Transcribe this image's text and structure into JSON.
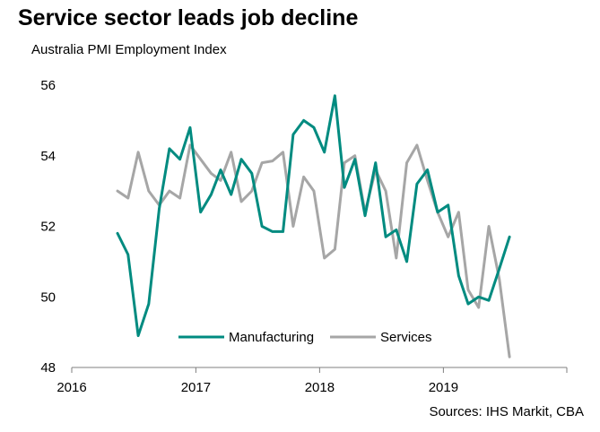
{
  "chart_data": {
    "type": "line",
    "title": "Service sector leads job decline",
    "subtitle": "Australia PMI Employment Index",
    "source": "Sources:  IHS Markit,  CBA",
    "xlabel": "",
    "ylabel": "",
    "xlim": [
      "2016-01-01",
      "2019-12-31"
    ],
    "ylim": [
      48,
      56
    ],
    "x_ticks": [
      "2016",
      "2017",
      "2018",
      "2019"
    ],
    "y_ticks": [
      "48",
      "50",
      "52",
      "54",
      "56"
    ],
    "grid": false,
    "legend_position": "bottom-center",
    "series": [
      {
        "name": "Manufacturing",
        "color": "#008b80",
        "x": [
          "2016-05",
          "2016-06",
          "2016-07",
          "2016-08",
          "2016-09",
          "2016-10",
          "2016-11",
          "2016-12",
          "2017-01",
          "2017-02",
          "2017-03",
          "2017-04",
          "2017-05",
          "2017-06",
          "2017-07",
          "2017-08",
          "2017-09",
          "2017-10",
          "2017-11",
          "2017-12",
          "2018-01",
          "2018-02",
          "2018-03",
          "2018-04",
          "2018-05",
          "2018-06",
          "2018-07",
          "2018-08",
          "2018-09",
          "2018-10",
          "2018-11",
          "2018-12",
          "2019-01",
          "2019-02",
          "2019-03",
          "2019-04",
          "2019-05",
          "2019-06",
          "2019-07"
        ],
        "values": [
          51.8,
          51.2,
          48.9,
          49.8,
          52.5,
          54.2,
          53.9,
          54.8,
          52.4,
          52.9,
          53.6,
          52.9,
          53.9,
          53.5,
          52.0,
          51.85,
          51.85,
          54.6,
          55.0,
          54.8,
          54.1,
          55.7,
          53.1,
          53.9,
          52.3,
          53.8,
          51.7,
          51.9,
          51.0,
          53.2,
          53.6,
          52.4,
          52.6,
          50.6,
          49.8,
          50.0,
          49.9,
          50.8,
          51.7
        ]
      },
      {
        "name": "Services",
        "color": "#a6a6a6",
        "x": [
          "2016-05",
          "2016-06",
          "2016-07",
          "2016-08",
          "2016-09",
          "2016-10",
          "2016-11",
          "2016-12",
          "2017-01",
          "2017-02",
          "2017-03",
          "2017-04",
          "2017-05",
          "2017-06",
          "2017-07",
          "2017-08",
          "2017-09",
          "2017-10",
          "2017-11",
          "2017-12",
          "2018-01",
          "2018-02",
          "2018-03",
          "2018-04",
          "2018-05",
          "2018-06",
          "2018-07",
          "2018-08",
          "2018-09",
          "2018-10",
          "2018-11",
          "2018-12",
          "2019-01",
          "2019-02",
          "2019-03",
          "2019-04",
          "2019-05",
          "2019-06",
          "2019-07"
        ],
        "values": [
          53.0,
          52.8,
          54.1,
          53.0,
          52.6,
          53.0,
          52.8,
          54.3,
          53.9,
          53.5,
          53.3,
          54.1,
          52.7,
          53.0,
          53.8,
          53.85,
          54.1,
          52.0,
          53.4,
          53.0,
          51.1,
          51.35,
          53.8,
          54.0,
          52.4,
          53.6,
          53.0,
          51.1,
          53.8,
          54.3,
          53.3,
          52.4,
          51.7,
          52.4,
          50.2,
          49.7,
          52.0,
          50.5,
          48.3
        ]
      }
    ]
  }
}
